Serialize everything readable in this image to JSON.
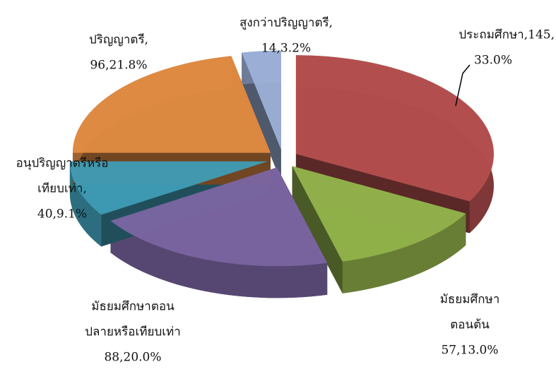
{
  "chart_data": {
    "type": "pie3d",
    "values": [
      145,
      57,
      88,
      40,
      96,
      14
    ],
    "value_labels": [
      [
        "ประถมศึกษา,145,",
        "33.0%"
      ],
      [
        "มัธยมศึกษา",
        "ตอนต้น",
        "57,13.0%"
      ],
      [
        "มัธยมศึกษาตอน",
        "ปลายหรือเทียบเท่า",
        "88,20.0%"
      ],
      [
        "อนุปริญญาตรีหรือ",
        "เทียบเท่า,",
        "40,9.1%"
      ],
      [
        "ปริญญาตรี,",
        "96,21.8%"
      ],
      [
        "สูงกว่าปริญญาตรี,",
        "14,3.2%"
      ]
    ],
    "colors": [
      "#b5504f",
      "#94b44c",
      "#7b66a3",
      "#3f9db6",
      "#e18c43",
      "#9db1d8"
    ]
  }
}
